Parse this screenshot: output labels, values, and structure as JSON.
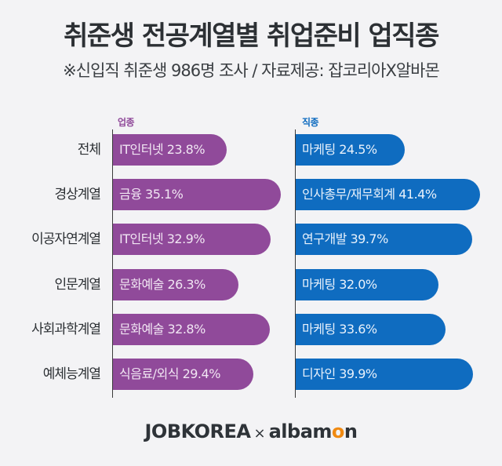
{
  "header": {
    "title": "취준생 전공계열별 취업준비 업직종",
    "subtitle": "※신입직 취준생 986명 조사 / 자료제공: 잡코리아X알바몬"
  },
  "colors": {
    "industry": "#904a9a",
    "job": "#0f6cc0",
    "background": "#f3f3f5",
    "albamon_accent": "#f08a12"
  },
  "footer": {
    "brand1": "JOBKOREA",
    "separator": "×",
    "brand2_pre": "albam",
    "brand2_o": "o",
    "brand2_post": "n"
  },
  "chart_data": {
    "type": "bar",
    "orientation": "horizontal",
    "title": "취준생 전공계열별 취업준비 업직종",
    "subtitle": "※신입직 취준생 986명 조사 / 자료제공: 잡코리아X알바몬",
    "categories": [
      "전체",
      "경상계열",
      "이공자연계열",
      "인문계열",
      "사회과학계열",
      "예체능계열"
    ],
    "series": [
      {
        "name": "업종",
        "color": "#904a9a",
        "labels": [
          "IT인터넷",
          "금융",
          "IT인터넷",
          "문화예술",
          "문화예술",
          "식음료/외식"
        ],
        "values": [
          23.8,
          35.1,
          32.9,
          26.3,
          32.8,
          29.4
        ],
        "display": [
          "IT인터넷 23.8%",
          "금융 35.1%",
          "IT인터넷 32.9%",
          "문화예술 26.3%",
          "문화예술 32.8%",
          "식음료/외식 29.4%"
        ]
      },
      {
        "name": "직종",
        "color": "#0f6cc0",
        "labels": [
          "마케팅",
          "인사총무/재무회계",
          "연구개발",
          "마케팅",
          "마케팅",
          "디자인"
        ],
        "values": [
          24.5,
          41.4,
          39.7,
          32.0,
          33.6,
          39.9
        ],
        "display": [
          "마케팅 24.5%",
          "인사총무/재무회계 41.4%",
          "연구개발 39.7%",
          "마케팅 32.0%",
          "마케팅 33.6%",
          "디자인 39.9%"
        ]
      }
    ],
    "xlabel": "",
    "ylabel": "",
    "unit": "%",
    "grid": false,
    "legend": "inline labels above each panel"
  }
}
